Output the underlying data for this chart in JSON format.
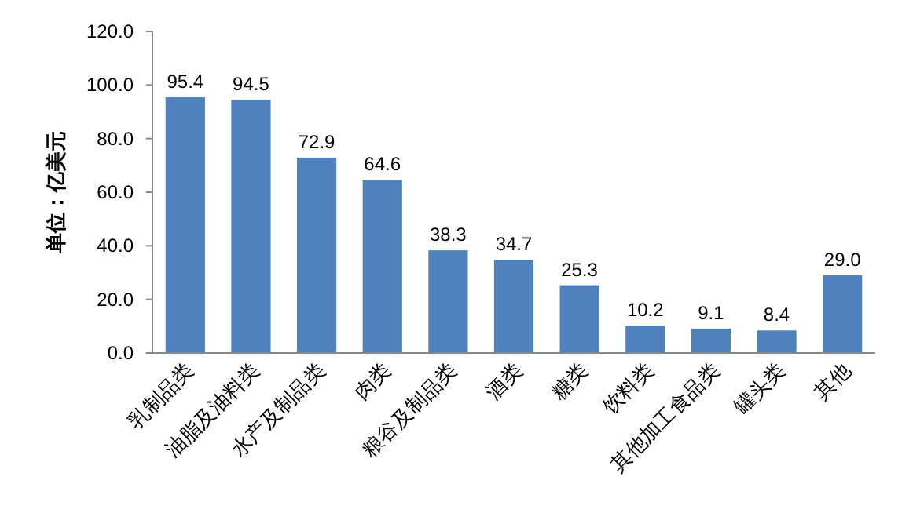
{
  "chart_data": {
    "type": "bar",
    "ylabel": "单位：亿美元",
    "categories": [
      "乳制品类",
      "油脂及油料类",
      "水产及制品类",
      "肉类",
      "粮谷及制品类",
      "酒类",
      "糖类",
      "饮料类",
      "其他加工食品类",
      "罐头类",
      "其他"
    ],
    "values": [
      95.4,
      94.5,
      72.9,
      64.6,
      38.3,
      34.7,
      25.3,
      10.2,
      9.1,
      8.4,
      29.0
    ],
    "value_labels": [
      "95.4",
      "94.5",
      "72.9",
      "64.6",
      "38.3",
      "34.7",
      "25.3",
      "10.2",
      "9.1",
      "8.4",
      "29.0"
    ],
    "color": "#4f81bd",
    "ylim": [
      0,
      120
    ],
    "yticks": [
      {
        "value": 0,
        "label": "0.0"
      },
      {
        "value": 20,
        "label": "20.0"
      },
      {
        "value": 40,
        "label": "40.0"
      },
      {
        "value": 60,
        "label": "60.0"
      },
      {
        "value": 80,
        "label": "80.0"
      },
      {
        "value": 100,
        "label": "100.0"
      },
      {
        "value": 120,
        "label": "120.0"
      }
    ],
    "grid": false
  }
}
